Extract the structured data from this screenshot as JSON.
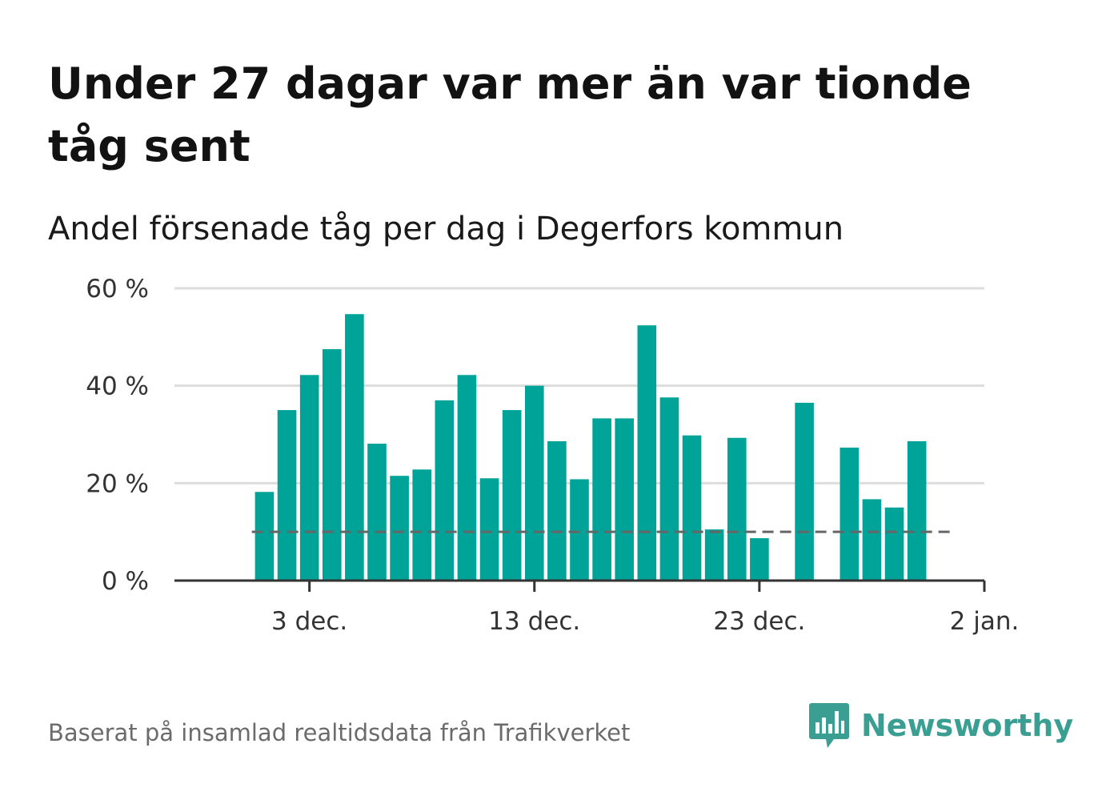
{
  "header": {
    "title": "Under 27 dagar var mer än var tionde tåg sent",
    "subtitle": "Andel försenade tåg per dag i Degerfors kommun"
  },
  "footer": {
    "source": "Baserat på insamlad realtidsdata från Trafikverket",
    "brand": "Newsworthy",
    "brand_icon": "bar-chart-speech-bubble-icon"
  },
  "colors": {
    "bar": "#00a398",
    "reference_line": "#666666",
    "grid": "#dddddd",
    "brand": "#3a9e92"
  },
  "chart_data": {
    "type": "bar",
    "x": [
      "2020-12-01",
      "2020-12-02",
      "2020-12-03",
      "2020-12-04",
      "2020-12-05",
      "2020-12-06",
      "2020-12-07",
      "2020-12-08",
      "2020-12-09",
      "2020-12-10",
      "2020-12-11",
      "2020-12-12",
      "2020-12-13",
      "2020-12-14",
      "2020-12-15",
      "2020-12-16",
      "2020-12-17",
      "2020-12-18",
      "2020-12-19",
      "2020-12-20",
      "2020-12-21",
      "2020-12-22",
      "2020-12-23",
      "2020-12-24",
      "2020-12-25",
      "2020-12-26",
      "2020-12-27",
      "2020-12-28",
      "2020-12-29",
      "2020-12-30"
    ],
    "values": [
      18.2,
      35,
      42.2,
      47.5,
      54.7,
      28.1,
      21.5,
      22.8,
      37,
      42.2,
      21,
      35,
      40,
      28.6,
      20.8,
      33.3,
      33.3,
      52.4,
      37.6,
      29.8,
      10.5,
      29.3,
      8.7,
      null,
      36.5,
      null,
      27.3,
      16.7,
      15,
      28.6
    ],
    "unit": "%",
    "ylim": [
      0,
      60
    ],
    "yticks": [
      0,
      20,
      40,
      60
    ],
    "ytick_labels": [
      "0 %",
      "20 %",
      "40 %",
      "60 %"
    ],
    "xticks": [
      "2020-12-03",
      "2020-12-13",
      "2020-12-23",
      "2021-01-02"
    ],
    "xtick_labels": [
      "3 dec.",
      "13 dec.",
      "23 dec.",
      "2 jan."
    ],
    "xlim": [
      "2020-11-27",
      "2021-01-02"
    ],
    "reference_line": 10,
    "grid": "horizontal"
  }
}
